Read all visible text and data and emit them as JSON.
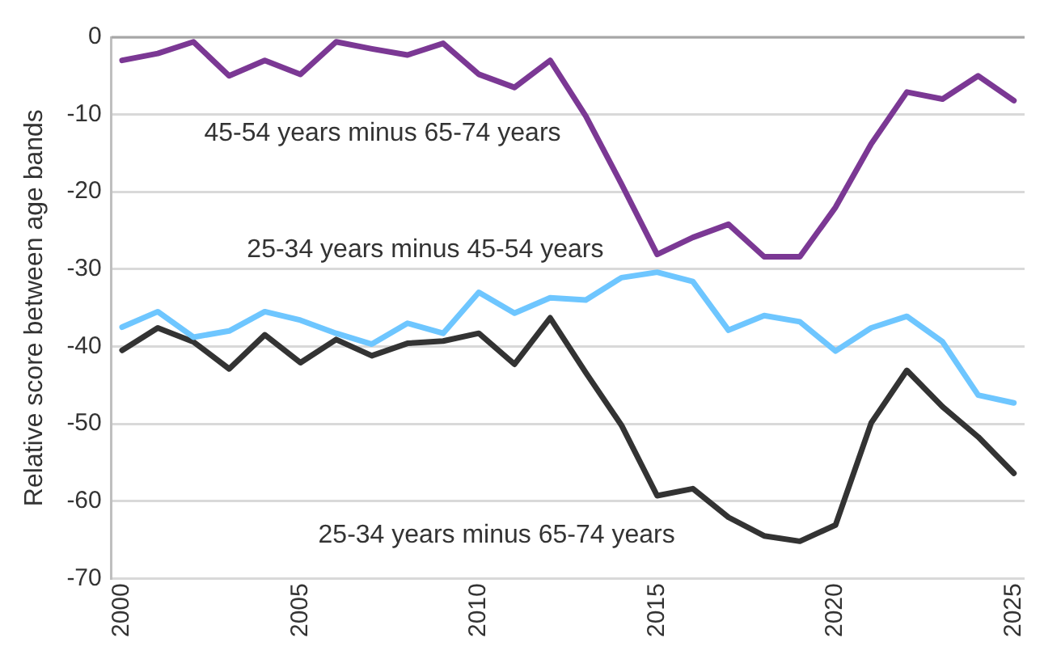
{
  "chart_data": {
    "type": "line",
    "ylabel": "Relative score between age bands",
    "x": [
      2000,
      2001,
      2002,
      2003,
      2004,
      2005,
      2006,
      2007,
      2008,
      2009,
      2010,
      2011,
      2012,
      2013,
      2014,
      2015,
      2016,
      2017,
      2018,
      2019,
      2020,
      2021,
      2022,
      2023,
      2024,
      2025
    ],
    "series": [
      {
        "name": "45-54 years minus 65-74 years",
        "color": "#7b3894",
        "values": [
          -3,
          -2.1,
          -0.6,
          -5,
          -3,
          -4.8,
          -0.6,
          -1.5,
          -2.3,
          -0.8,
          -4.8,
          -6.5,
          -3,
          -10.2,
          -19,
          -28.1,
          -25.9,
          -24.2,
          -28.4,
          -28.4,
          -22,
          -13.8,
          -7.1,
          -8,
          -5,
          -8.2
        ]
      },
      {
        "name": "25-34 years minus 45-54 years",
        "color": "#6ec6ff",
        "values": [
          -37.5,
          -35.5,
          -38.8,
          -38,
          -35.5,
          -36.6,
          -38.3,
          -39.7,
          -37,
          -38.3,
          -33,
          -35.7,
          -33.7,
          -34,
          -31.1,
          -30.4,
          -31.6,
          -37.9,
          -36,
          -36.8,
          -40.6,
          -37.6,
          -36.1,
          -39.4,
          -46.3,
          -47.3
        ]
      },
      {
        "name": "25-34 years minus 65-74 years",
        "color": "#333333",
        "values": [
          -40.5,
          -37.6,
          -39.4,
          -42.9,
          -38.5,
          -42.1,
          -39.1,
          -41.2,
          -39.6,
          -39.3,
          -38.3,
          -42.3,
          -36.3,
          -43.4,
          -50.2,
          -59.3,
          -58.4,
          -62.1,
          -64.5,
          -65.2,
          -63.1,
          -49.9,
          -43.1,
          -47.8,
          -51.7,
          -56.4
        ]
      }
    ],
    "xlim": [
      1999.7,
      2025.3
    ],
    "xticks": [
      2000,
      2005,
      2010,
      2015,
      2020,
      2025
    ],
    "ylim": [
      -70,
      0
    ],
    "yticks": [
      -70,
      -60,
      -50,
      -40,
      -30,
      -20,
      -10,
      0
    ],
    "grid": "y",
    "legend": false,
    "marker": "none",
    "line_style": "solid"
  }
}
